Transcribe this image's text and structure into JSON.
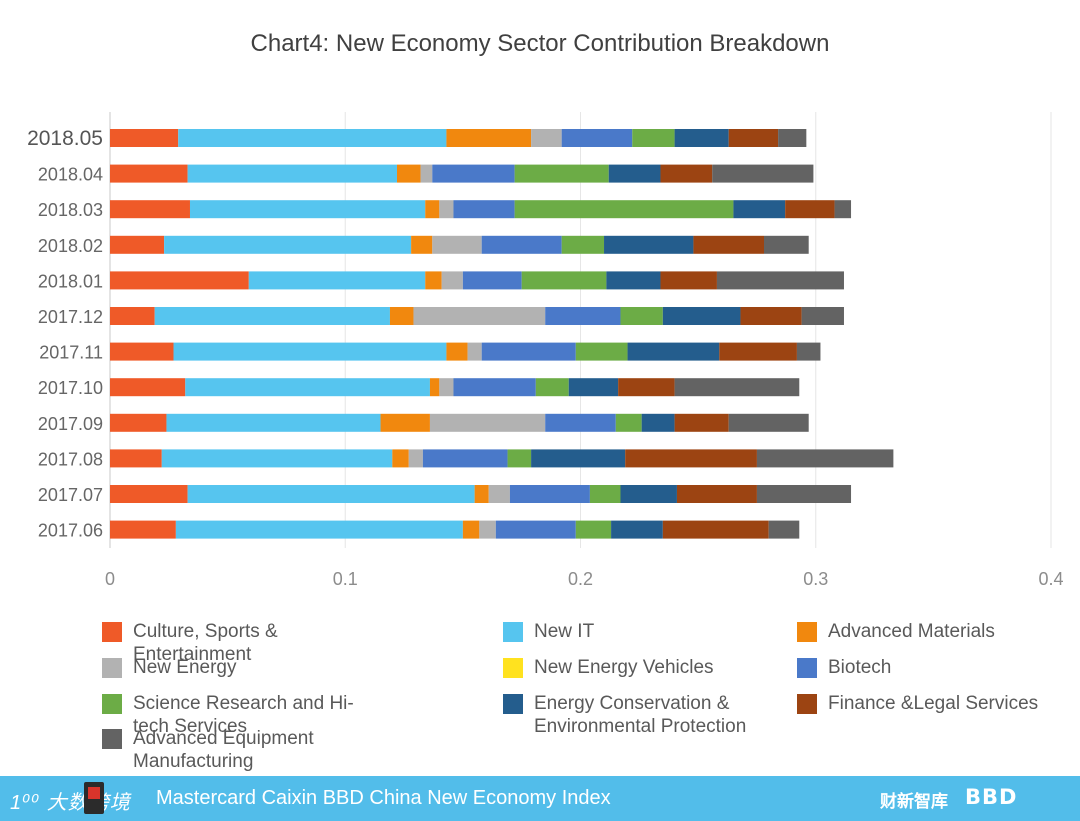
{
  "chart_data": {
    "type": "bar",
    "orientation": "horizontal",
    "stacked": true,
    "title": "Chart4: New Economy Sector Contribution Breakdown",
    "xlim": [
      0,
      0.4
    ],
    "xticks": [
      "0",
      "0.1",
      "0.2",
      "0.3",
      "0.4"
    ],
    "xtick_values": [
      0,
      0.1,
      0.2,
      0.3,
      0.4
    ],
    "grid": "vertical",
    "legend_position": "bottom",
    "categories": [
      "2018.05",
      "2018.04",
      "2018.03",
      "2018.02",
      "2018.01",
      "2017.12",
      "2017.11",
      "2017.10",
      "2017.09",
      "2017.08",
      "2017.07",
      "2017.06"
    ],
    "series": [
      {
        "name": "Culture, Sports & Entertainment",
        "color": "#ef5a28",
        "values": [
          0.029,
          0.033,
          0.034,
          0.023,
          0.059,
          0.019,
          0.027,
          0.032,
          0.024,
          0.022,
          0.033,
          0.028
        ]
      },
      {
        "name": "New IT",
        "color": "#56c5ef",
        "values": [
          0.114,
          0.089,
          0.1,
          0.105,
          0.075,
          0.1,
          0.116,
          0.104,
          0.091,
          0.098,
          0.122,
          0.122
        ]
      },
      {
        "name": "Advanced Materials",
        "color": "#f1880e",
        "values": [
          0.036,
          0.01,
          0.006,
          0.009,
          0.007,
          0.01,
          0.009,
          0.004,
          0.021,
          0.007,
          0.006,
          0.007
        ]
      },
      {
        "name": "New Energy",
        "color": "#b2b2b2",
        "values": [
          0.013,
          0.005,
          0.006,
          0.021,
          0.009,
          0.056,
          0.006,
          0.006,
          0.049,
          0.006,
          0.009,
          0.007
        ]
      },
      {
        "name": "New Energy Vehicles",
        "color": "#ffe21f",
        "values": [
          0.0,
          0.0,
          0.0,
          0.0,
          0.0,
          0.0,
          0.0,
          0.0,
          0.0,
          0.0,
          0.0,
          0.0
        ]
      },
      {
        "name": "Biotech",
        "color": "#4a79c9",
        "values": [
          0.03,
          0.035,
          0.026,
          0.034,
          0.025,
          0.032,
          0.04,
          0.035,
          0.03,
          0.036,
          0.034,
          0.034
        ]
      },
      {
        "name": "Science Research and Hi-tech Services",
        "color": "#6cac46",
        "values": [
          0.018,
          0.04,
          0.093,
          0.018,
          0.036,
          0.018,
          0.022,
          0.014,
          0.011,
          0.01,
          0.013,
          0.015
        ]
      },
      {
        "name": "Energy Conservation & Environmental Protection",
        "color": "#245d8d",
        "values": [
          0.023,
          0.022,
          0.022,
          0.038,
          0.023,
          0.033,
          0.039,
          0.021,
          0.014,
          0.04,
          0.024,
          0.022
        ]
      },
      {
        "name": "Finance &Legal Services",
        "color": "#9c4412",
        "values": [
          0.021,
          0.022,
          0.021,
          0.03,
          0.024,
          0.026,
          0.033,
          0.024,
          0.023,
          0.056,
          0.034,
          0.045
        ]
      },
      {
        "name": "Advanced Equipment Manufacturing",
        "color": "#636363",
        "values": [
          0.012,
          0.043,
          0.007,
          0.019,
          0.054,
          0.018,
          0.01,
          0.053,
          0.034,
          0.058,
          0.04,
          0.013
        ]
      }
    ]
  },
  "footer": {
    "logo_left": "1⁰⁰ 大数跨境",
    "title": "Mastercard Caixin BBD China New Economy Index",
    "logo_right_1": "财新智库",
    "logo_right_2": "BBD"
  }
}
